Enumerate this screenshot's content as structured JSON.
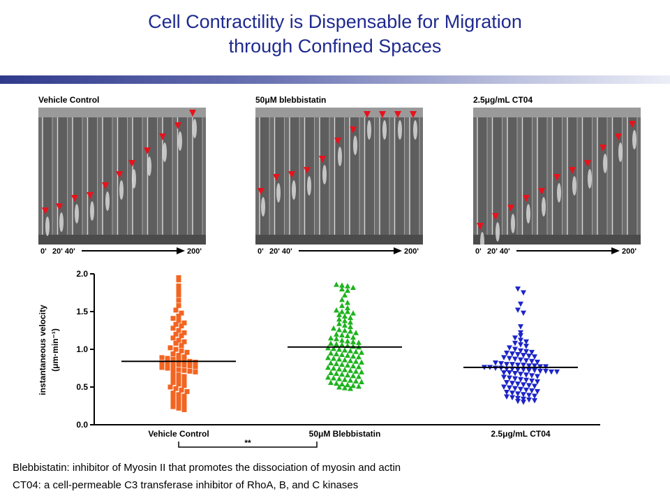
{
  "title": {
    "line1": "Cell Contractility is Dispensable for Migration",
    "line2": "through Confined Spaces"
  },
  "panels": [
    {
      "label": "Vehicle Control",
      "time_start": "0'",
      "time_mid": "20' 40'",
      "time_end": "200'"
    },
    {
      "label": "50μM blebbistatin",
      "time_start": "0'",
      "time_mid": "20' 40'",
      "time_end": "200'"
    },
    {
      "label": "2.5μg/mL CT04",
      "time_start": "0'",
      "time_mid": "20' 40'",
      "time_end": "200'"
    }
  ],
  "chart_data": {
    "type": "scatter",
    "ylabel_line1": "instantaneous velocity",
    "ylabel_line2": "(μm·min⁻¹)",
    "ylim": [
      0.0,
      2.0
    ],
    "yticks": [
      "0.0",
      "0.5",
      "1.0",
      "1.5",
      "2.0"
    ],
    "categories": [
      "Vehicle Control",
      "50μM Blebbistatin",
      "2.5μg/mL CT04"
    ],
    "significance": "**",
    "series": [
      {
        "marker": "square",
        "color": "#f26522",
        "mean": 0.84,
        "values": [
          1.95,
          1.92,
          1.84,
          1.78,
          1.72,
          1.65,
          1.58,
          1.52,
          1.48,
          1.44,
          1.41,
          1.38,
          1.35,
          1.33,
          1.31,
          1.28,
          1.25,
          1.22,
          1.2,
          1.18,
          1.15,
          1.12,
          1.1,
          1.08,
          1.05,
          1.02,
          1.0,
          0.98,
          0.96,
          0.94,
          0.92,
          0.9,
          0.89,
          0.88,
          0.87,
          0.86,
          0.85,
          0.84,
          0.83,
          0.82,
          0.81,
          0.8,
          0.8,
          0.79,
          0.78,
          0.77,
          0.76,
          0.75,
          0.74,
          0.73,
          0.72,
          0.71,
          0.7,
          0.68,
          0.66,
          0.64,
          0.62,
          0.6,
          0.58,
          0.56,
          0.54,
          0.52,
          0.5,
          0.48,
          0.46,
          0.44,
          0.42,
          0.4,
          0.38,
          0.36,
          0.34,
          0.32,
          0.3,
          0.28,
          0.26,
          0.24,
          0.22,
          0.2
        ]
      },
      {
        "marker": "triangle-up",
        "color": "#1db31d",
        "mean": 1.03,
        "values": [
          1.86,
          1.85,
          1.84,
          1.82,
          1.8,
          1.78,
          1.72,
          1.66,
          1.62,
          1.58,
          1.55,
          1.52,
          1.5,
          1.5,
          1.48,
          1.46,
          1.44,
          1.42,
          1.4,
          1.38,
          1.36,
          1.34,
          1.32,
          1.3,
          1.28,
          1.26,
          1.25,
          1.24,
          1.22,
          1.2,
          1.19,
          1.18,
          1.16,
          1.15,
          1.14,
          1.12,
          1.11,
          1.1,
          1.09,
          1.08,
          1.07,
          1.06,
          1.05,
          1.04,
          1.03,
          1.02,
          1.01,
          1.0,
          0.99,
          0.98,
          0.97,
          0.96,
          0.95,
          0.94,
          0.93,
          0.92,
          0.91,
          0.9,
          0.89,
          0.88,
          0.87,
          0.86,
          0.85,
          0.84,
          0.83,
          0.82,
          0.81,
          0.8,
          0.79,
          0.78,
          0.77,
          0.76,
          0.75,
          0.74,
          0.73,
          0.72,
          0.71,
          0.7,
          0.69,
          0.68,
          0.67,
          0.66,
          0.65,
          0.64,
          0.63,
          0.62,
          0.61,
          0.6,
          0.59,
          0.58,
          0.57,
          0.56,
          0.55,
          0.54,
          0.53,
          0.52,
          0.51,
          0.5,
          0.49,
          0.48
        ]
      },
      {
        "marker": "triangle-down",
        "color": "#1c24c8",
        "mean": 0.76,
        "values": [
          1.8,
          1.75,
          1.6,
          1.52,
          1.48,
          1.3,
          1.22,
          1.18,
          1.15,
          1.12,
          1.1,
          1.08,
          1.06,
          1.04,
          1.02,
          1.0,
          0.98,
          0.97,
          0.96,
          0.95,
          0.94,
          0.93,
          0.92,
          0.91,
          0.9,
          0.89,
          0.88,
          0.87,
          0.86,
          0.85,
          0.84,
          0.83,
          0.82,
          0.81,
          0.8,
          0.8,
          0.79,
          0.79,
          0.78,
          0.78,
          0.77,
          0.77,
          0.76,
          0.76,
          0.75,
          0.75,
          0.74,
          0.74,
          0.73,
          0.73,
          0.72,
          0.72,
          0.71,
          0.71,
          0.7,
          0.7,
          0.69,
          0.69,
          0.68,
          0.67,
          0.66,
          0.65,
          0.64,
          0.63,
          0.62,
          0.61,
          0.6,
          0.59,
          0.58,
          0.57,
          0.56,
          0.55,
          0.54,
          0.53,
          0.52,
          0.51,
          0.5,
          0.49,
          0.48,
          0.47,
          0.46,
          0.45,
          0.44,
          0.43,
          0.42,
          0.41,
          0.4,
          0.39,
          0.38,
          0.37,
          0.36,
          0.35,
          0.34,
          0.33,
          0.32,
          0.31,
          0.3
        ]
      }
    ]
  },
  "footnotes": [
    "Blebbistatin: inhibitor of Myosin II that promotes the dissociation of myosin and actin",
    "CT04: a cell-permeable C3 transferase inhibitor of RhoA, B, and C kinases"
  ],
  "colors": {
    "title": "#1f2a8f",
    "arrowhead": "#e8121c"
  }
}
